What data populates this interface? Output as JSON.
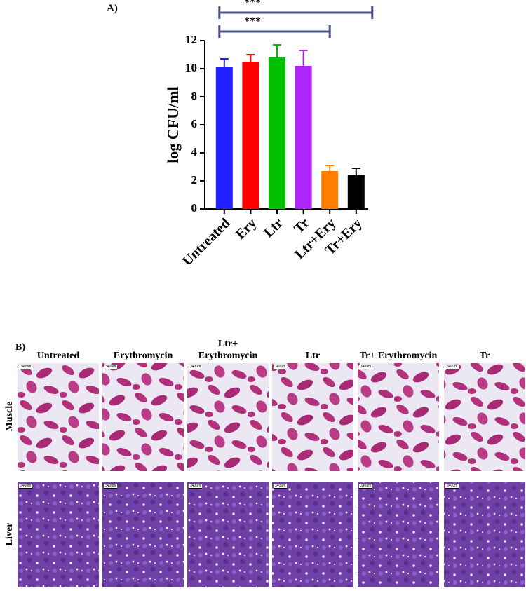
{
  "chart_data": {
    "type": "bar",
    "panel_label": "A)",
    "ylabel": "log CFU/ml",
    "categories": [
      "Untreated",
      "Ery",
      "Ltr",
      "Tr",
      "Ltr+Ery",
      "Tr+Ery"
    ],
    "values": [
      10.1,
      10.5,
      10.8,
      10.2,
      2.7,
      2.4
    ],
    "errors": [
      0.6,
      0.5,
      0.9,
      1.1,
      0.4,
      0.5
    ],
    "colors": [
      "#1f1fff",
      "#ff0000",
      "#00c000",
      "#b026ff",
      "#ff8000",
      "#000000"
    ],
    "ylim": [
      0,
      12
    ],
    "yticks": [
      0,
      2,
      4,
      6,
      8,
      10,
      12
    ],
    "significance": [
      {
        "label": "***",
        "from": 0,
        "to": 5
      },
      {
        "label": "***",
        "from": 0,
        "to": 4
      }
    ],
    "significance_color": "#4a4f86"
  },
  "histology": {
    "panel_label": "B)",
    "columns": [
      "Untreated",
      "Erythromycin",
      "Ltr+ Erythromycin",
      "Ltr",
      "Tr+ Erythromycin",
      "Tr"
    ],
    "rows": [
      "Muscle",
      "Liver"
    ],
    "scale_bar": "340um"
  }
}
